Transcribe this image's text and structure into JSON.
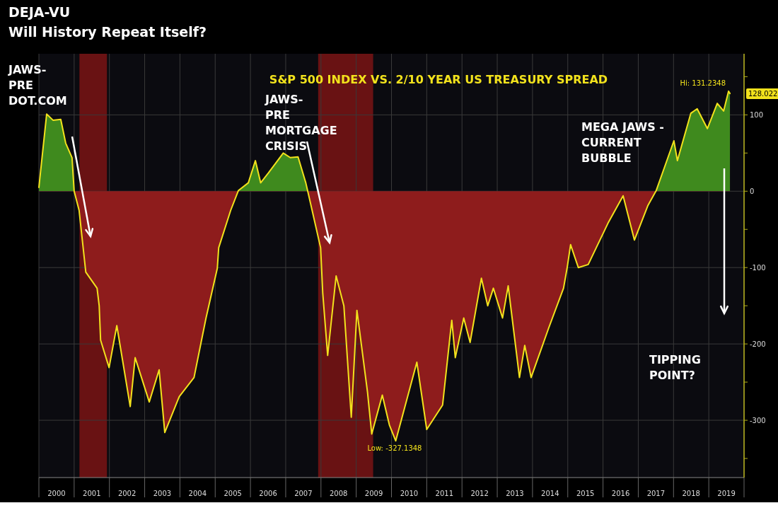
{
  "chart_data": {
    "type": "area",
    "title": "DEJA-VU",
    "subtitle": "Will History Repeat Itself?",
    "annotations": [
      "S&P 500 INDEX VS. 2/10 YEAR US TREASURY SPREAD",
      "JAWS-\nPRE\nDOT.COM",
      "JAWS-\nPRE\nMORTGAGE\nCRISIS",
      "MEGA JAWS -\nCURRENT\nBUBBLE",
      "TIPPING\nPOINT?",
      {
        "text": "Hi: 131.2348",
        "x": 2019.56,
        "y": 131.2348
      },
      {
        "text": "Low: -327.1348",
        "x": 2010.12,
        "y": -327.1348
      },
      {
        "text": "128.022",
        "x": 2019.6,
        "y": 128.022
      }
    ],
    "xlim": [
      2000,
      2020
    ],
    "xticks": [
      {
        "value": 2000,
        "label": null
      },
      {
        "value": 2000.5,
        "label": "2000"
      },
      {
        "value": 2001,
        "label": null
      },
      {
        "value": 2001.5,
        "label": "2001"
      },
      {
        "value": 2002,
        "label": null
      },
      {
        "value": 2002.5,
        "label": "2002"
      },
      {
        "value": 2003,
        "label": null
      },
      {
        "value": 2003.5,
        "label": "2003"
      },
      {
        "value": 2004,
        "label": null
      },
      {
        "value": 2004.5,
        "label": "2004"
      },
      {
        "value": 2005,
        "label": null
      },
      {
        "value": 2005.5,
        "label": "2005"
      },
      {
        "value": 2006,
        "label": null
      },
      {
        "value": 2006.5,
        "label": "2006"
      },
      {
        "value": 2007,
        "label": null
      },
      {
        "value": 2007.5,
        "label": "2007"
      },
      {
        "value": 2008,
        "label": null
      },
      {
        "value": 2008.5,
        "label": "2008"
      },
      {
        "value": 2009,
        "label": null
      },
      {
        "value": 2009.5,
        "label": "2009"
      },
      {
        "value": 2010,
        "label": null
      },
      {
        "value": 2010.5,
        "label": "2010"
      },
      {
        "value": 2011,
        "label": null
      },
      {
        "value": 2011.5,
        "label": "2011"
      },
      {
        "value": 2012,
        "label": null
      },
      {
        "value": 2012.5,
        "label": "2012"
      },
      {
        "value": 2013,
        "label": null
      },
      {
        "value": 2013.5,
        "label": "2013"
      },
      {
        "value": 2014,
        "label": null
      },
      {
        "value": 2014.5,
        "label": "2014"
      },
      {
        "value": 2015,
        "label": null
      },
      {
        "value": 2015.5,
        "label": "2015"
      },
      {
        "value": 2016,
        "label": null
      },
      {
        "value": 2016.5,
        "label": "2016"
      },
      {
        "value": 2017,
        "label": null
      },
      {
        "value": 2017.5,
        "label": "2017"
      },
      {
        "value": 2018,
        "label": null
      },
      {
        "value": 2018.5,
        "label": "2018"
      },
      {
        "value": 2019,
        "label": null
      },
      {
        "value": 2019.5,
        "label": "2019"
      },
      {
        "value": 2020,
        "label": null
      }
    ],
    "ylim": [
      -375,
      180
    ],
    "yticks": [
      {
        "value": 150,
        "label": null
      },
      100,
      {
        "value": 50,
        "label": null
      },
      0,
      {
        "value": -50,
        "label": null
      },
      -100,
      {
        "value": -150,
        "label": null
      },
      -200,
      {
        "value": -250,
        "label": null
      },
      -300,
      {
        "value": -350,
        "label": null
      }
    ],
    "grid": true,
    "bands": [
      {
        "axis": "x",
        "from": 2001.15,
        "to": 2001.93,
        "color": "#7a1414"
      },
      {
        "axis": "x",
        "from": 2007.92,
        "to": 2009.48,
        "color": "#7a1414"
      }
    ],
    "series": [
      {
        "color": "#f2e21c",
        "x": [
          2000.0,
          2000.22,
          2000.4,
          2000.62,
          2000.76,
          2000.94,
          2001.0,
          2001.14,
          2001.33,
          2001.65,
          2001.71,
          2001.75,
          2001.99,
          2002.21,
          2002.59,
          2002.73,
          2003.13,
          2003.41,
          2003.57,
          2003.98,
          2004.4,
          2004.6,
          2004.74,
          2005.06,
          2005.1,
          2005.44,
          2005.66,
          2005.94,
          2006.14,
          2006.29,
          2006.51,
          2006.93,
          2007.13,
          2007.35,
          2007.57,
          2007.67,
          2007.99,
          2008.05,
          2008.19,
          2008.43,
          2008.65,
          2008.86,
          2009.02,
          2009.32,
          2009.44,
          2009.74,
          2009.94,
          2010.12,
          2010.72,
          2011.0,
          2011.45,
          2011.71,
          2011.81,
          2012.05,
          2012.23,
          2012.55,
          2012.73,
          2012.89,
          2013.15,
          2013.31,
          2013.63,
          2013.78,
          2013.96,
          2014.46,
          2014.88,
          2014.98,
          2015.08,
          2015.3,
          2015.58,
          2016.14,
          2016.57,
          2016.89,
          2017.27,
          2017.51,
          2018.01,
          2018.11,
          2018.49,
          2018.67,
          2018.96,
          2019.24,
          2019.42,
          2019.56,
          2019.6
        ],
        "values": [
          5,
          101,
          93,
          94,
          63,
          44,
          0,
          -25,
          -106,
          -127,
          -150,
          -195,
          -231,
          -176,
          -282,
          -218,
          -276,
          -234,
          -316,
          -269,
          -244,
          -198,
          -166,
          -101,
          -74,
          -25,
          1,
          11,
          40,
          11,
          24,
          50,
          44,
          45,
          11,
          -9,
          -74,
          -133,
          -215,
          -111,
          -150,
          -296,
          -156,
          -263,
          -318,
          -267,
          -306,
          -327,
          -224,
          -312,
          -280,
          -169,
          -218,
          -166,
          -198,
          -114,
          -150,
          -127,
          -166,
          -124,
          -244,
          -202,
          -244,
          -179,
          -127,
          -101,
          -70,
          -100,
          -96,
          -42,
          -6,
          -64,
          -19,
          1,
          66,
          40,
          102,
          108,
          82,
          115,
          105,
          131,
          128
        ]
      }
    ]
  }
}
